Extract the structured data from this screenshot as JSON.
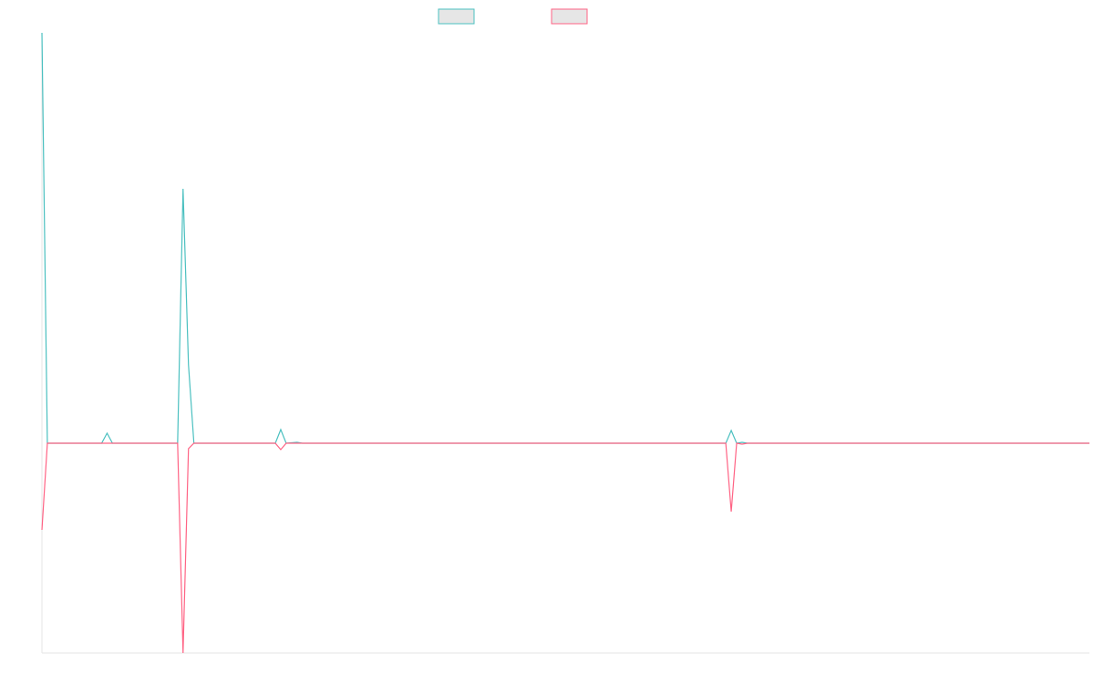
{
  "chart_data": {
    "type": "line",
    "x": [
      0,
      1,
      11,
      12,
      13,
      25,
      26,
      27,
      28,
      43,
      44,
      45,
      47,
      48,
      126,
      127,
      128,
      129,
      130,
      193
    ],
    "xlim": [
      0,
      193
    ],
    "ylim": [
      -230,
      450
    ],
    "series": [
      {
        "color": "#4bc0c0",
        "values": [
          450,
          0,
          0,
          11,
          0,
          0,
          279,
          86,
          0,
          0,
          15,
          0,
          1,
          0,
          0,
          14,
          0,
          1,
          0,
          0
        ]
      },
      {
        "color": "#ff6384",
        "values": [
          -95,
          0,
          0,
          0,
          0,
          0,
          -230,
          -6,
          0,
          0,
          -7,
          0,
          0,
          0,
          0,
          -75,
          0,
          -1,
          0,
          0
        ]
      }
    ]
  }
}
